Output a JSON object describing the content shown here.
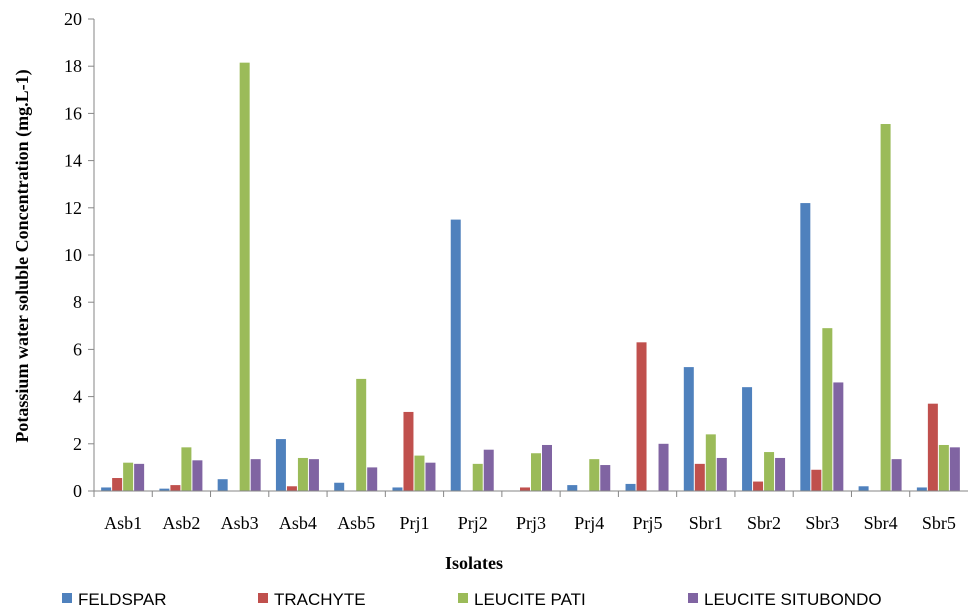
{
  "chart_data": {
    "type": "bar",
    "title": "",
    "xlabel": "Isolates",
    "ylabel": "Potassium water soluble Concentration (mg.L-1)",
    "ylim": [
      0,
      20
    ],
    "yticks": [
      0,
      2,
      4,
      6,
      8,
      10,
      12,
      14,
      16,
      18,
      20
    ],
    "grid": false,
    "legend_position": "bottom",
    "categories": [
      "Asb1",
      "Asb2",
      "Asb3",
      "Asb4",
      "Asb5",
      "Prj1",
      "Prj2",
      "Prj3",
      "Prj4",
      "Prj5",
      "Sbr1",
      "Sbr2",
      "Sbr3",
      "Sbr4",
      "Sbr5"
    ],
    "series": [
      {
        "name": "FELDSPAR",
        "color": "#4F81BD",
        "values": [
          0.15,
          0.1,
          0.5,
          2.2,
          0.35,
          0.15,
          11.5,
          0.0,
          0.25,
          0.3,
          5.25,
          4.4,
          12.2,
          0.2,
          0.15
        ]
      },
      {
        "name": "TRACHYTE",
        "color": "#C0504D",
        "values": [
          0.55,
          0.25,
          0.0,
          0.2,
          0.0,
          3.35,
          0.0,
          0.15,
          0.0,
          6.3,
          1.15,
          0.4,
          0.9,
          0.0,
          3.7
        ]
      },
      {
        "name": "LEUCITE PATI",
        "color": "#9BBB59",
        "values": [
          1.2,
          1.85,
          18.15,
          1.4,
          4.75,
          1.5,
          1.15,
          1.6,
          1.35,
          0.0,
          2.4,
          1.65,
          6.9,
          15.55,
          1.95
        ]
      },
      {
        "name": "LEUCITE SITUBONDO",
        "color": "#8064A2",
        "values": [
          1.15,
          1.3,
          1.35,
          1.35,
          1.0,
          1.2,
          1.75,
          1.95,
          1.1,
          2.0,
          1.4,
          1.4,
          4.6,
          1.35,
          1.85
        ]
      }
    ]
  }
}
